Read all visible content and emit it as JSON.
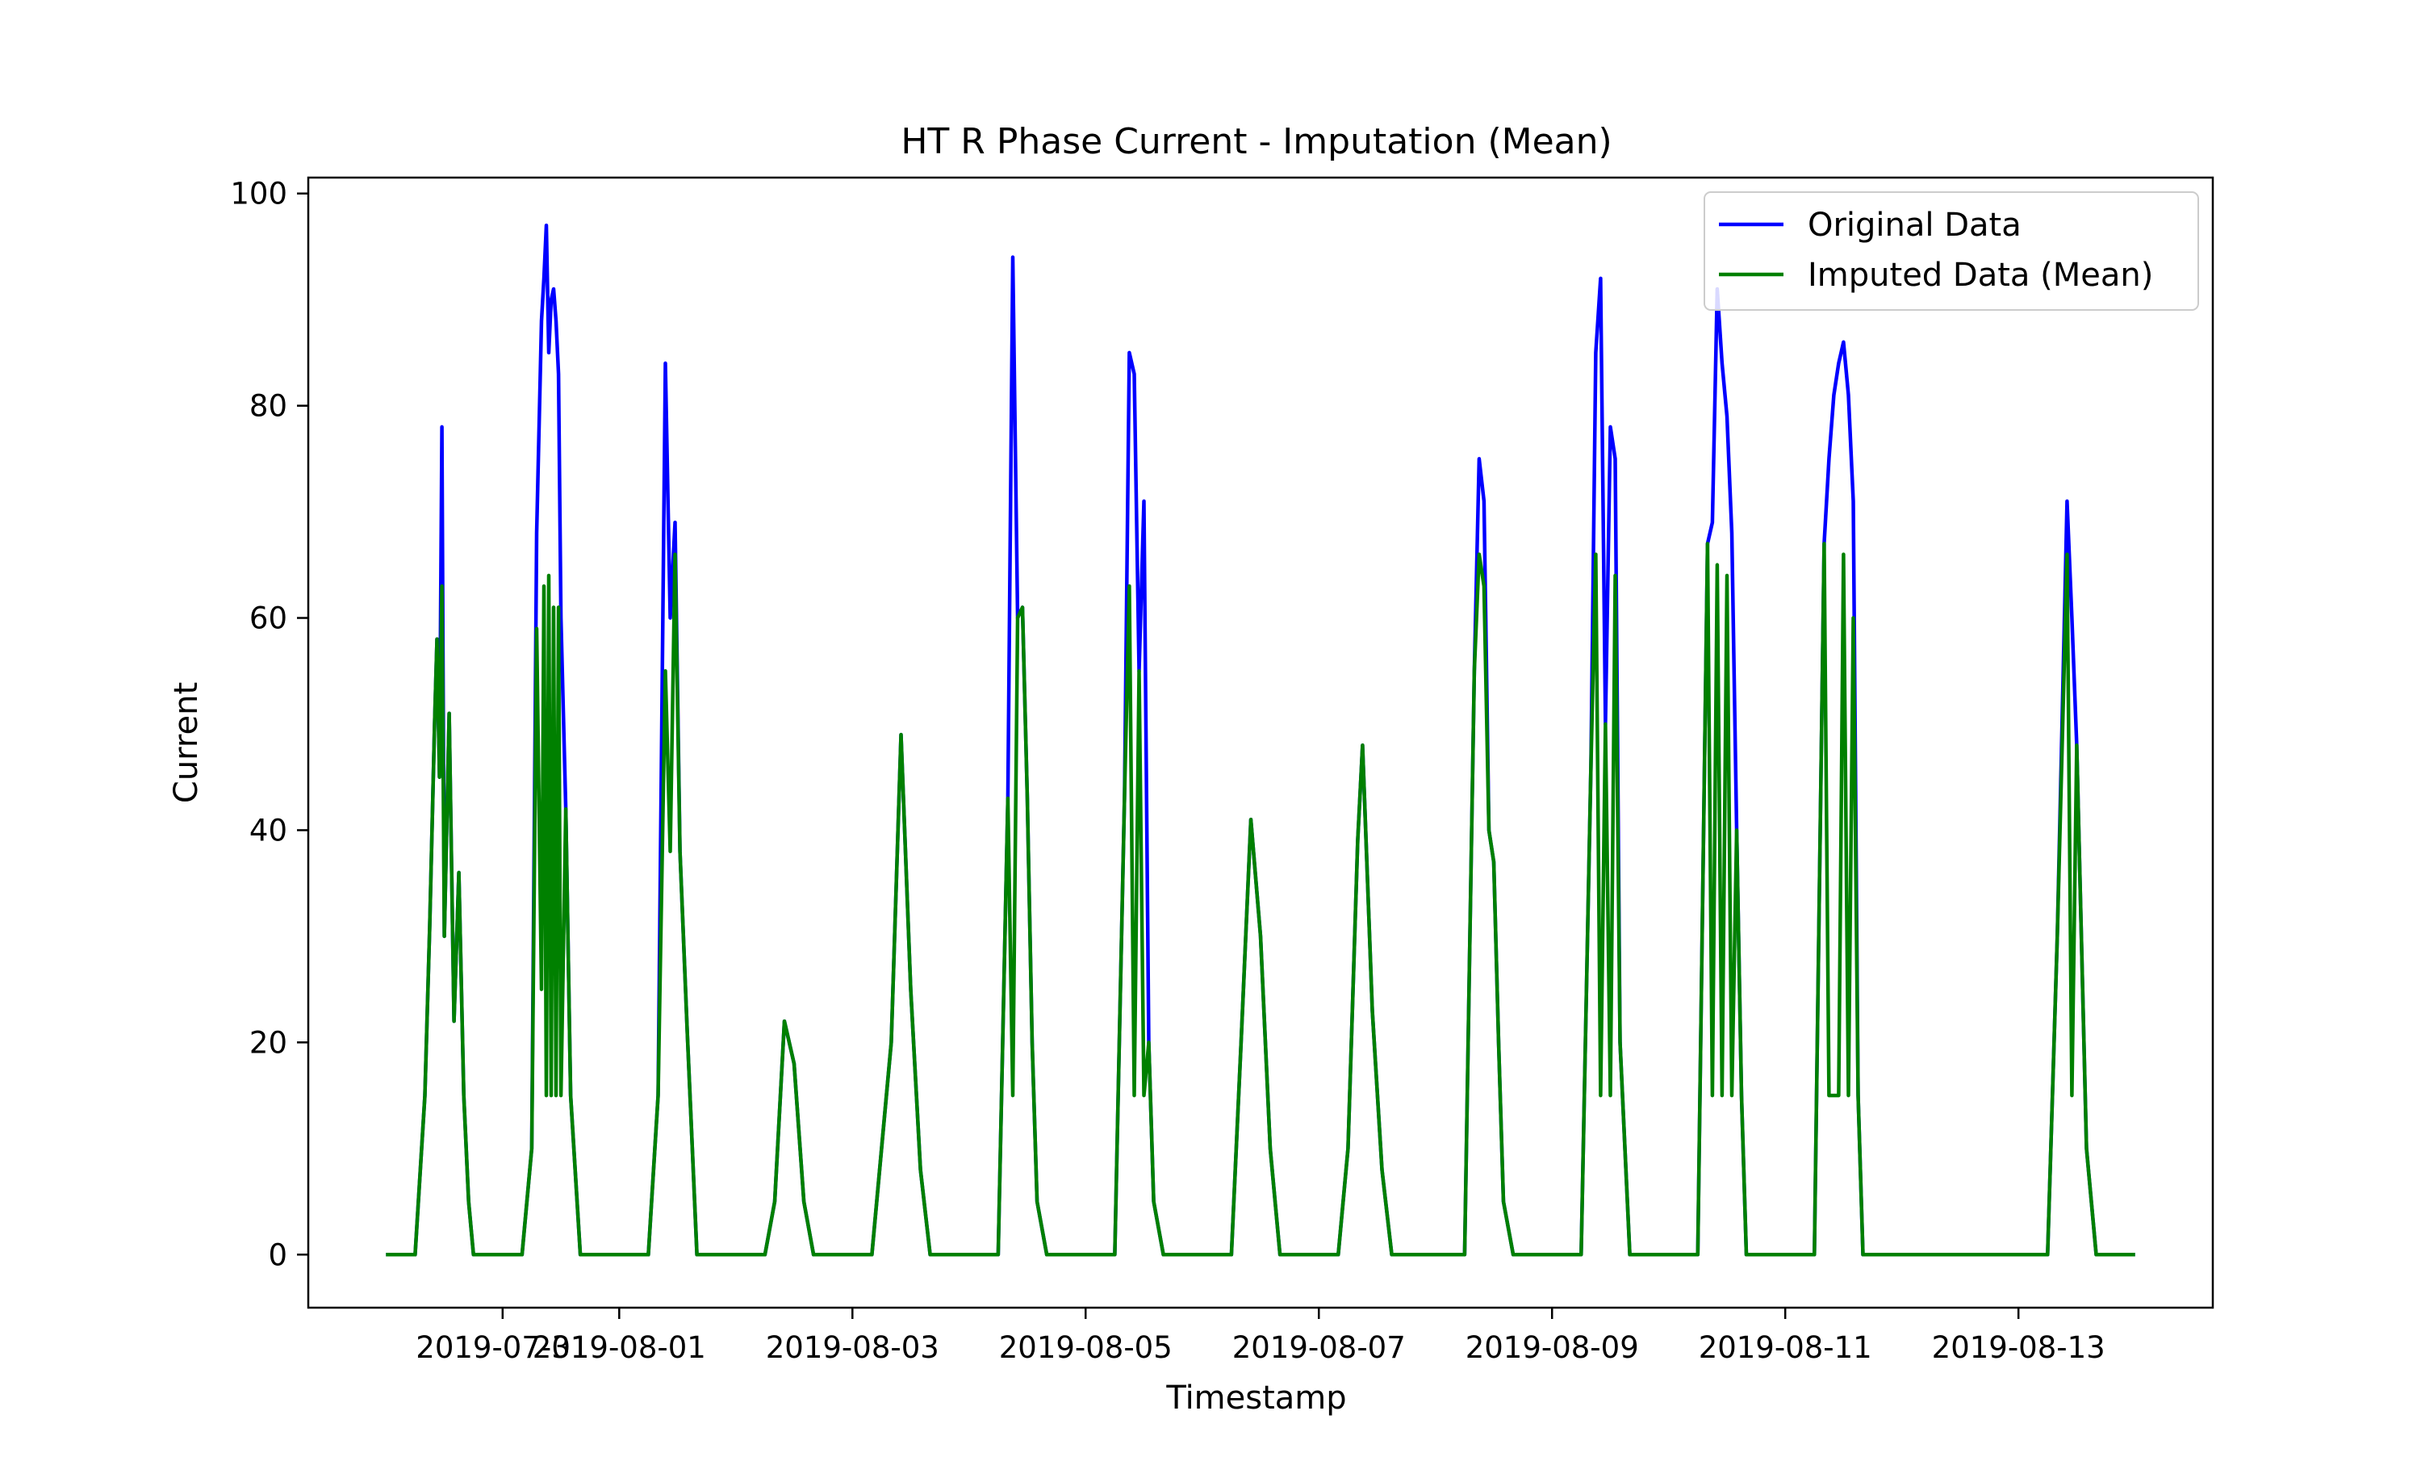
{
  "chart_data": {
    "type": "line",
    "title": "HT R Phase Current - Imputation (Mean)",
    "xlabel": "Timestamp",
    "ylabel": "Current",
    "grid": false,
    "legend_position": "top-right",
    "xlim": [
      "2019-07-29T08:00",
      "2019-08-14T16:00"
    ],
    "ylim": [
      -5,
      101.5
    ],
    "x_ticks": [
      "2019-07-31",
      "2019-08-01",
      "2019-08-03",
      "2019-08-05",
      "2019-08-07",
      "2019-08-09",
      "2019-08-11",
      "2019-08-13"
    ],
    "y_ticks": [
      0,
      20,
      40,
      60,
      80,
      100
    ],
    "series": [
      {
        "name": "Original Data",
        "color": "#0000ff",
        "points": [
          [
            "2019-07-30T00:00",
            0
          ],
          [
            "2019-07-30T06:00",
            0
          ],
          [
            "2019-07-30T08:00",
            15
          ],
          [
            "2019-07-30T09:00",
            31
          ],
          [
            "2019-07-30T10:00",
            50
          ],
          [
            "2019-07-30T10:30",
            58
          ],
          [
            "2019-07-30T11:00",
            45
          ],
          [
            "2019-07-30T11:30",
            78
          ],
          [
            "2019-07-30T12:00",
            30
          ],
          [
            "2019-07-30T13:00",
            51
          ],
          [
            "2019-07-30T14:00",
            22
          ],
          [
            "2019-07-30T15:00",
            36
          ],
          [
            "2019-07-30T16:00",
            15
          ],
          [
            "2019-07-30T17:00",
            5
          ],
          [
            "2019-07-30T18:00",
            0
          ],
          [
            "2019-07-31T04:00",
            0
          ],
          [
            "2019-07-31T06:00",
            10
          ],
          [
            "2019-07-31T07:00",
            68
          ],
          [
            "2019-07-31T08:00",
            88
          ],
          [
            "2019-07-31T08:30",
            92
          ],
          [
            "2019-07-31T09:00",
            97
          ],
          [
            "2019-07-31T09:30",
            85
          ],
          [
            "2019-07-31T10:00",
            90
          ],
          [
            "2019-07-31T10:30",
            91
          ],
          [
            "2019-07-31T11:00",
            88
          ],
          [
            "2019-07-31T11:30",
            83
          ],
          [
            "2019-07-31T12:00",
            60
          ],
          [
            "2019-07-31T13:00",
            42
          ],
          [
            "2019-07-31T14:00",
            15
          ],
          [
            "2019-07-31T16:00",
            0
          ],
          [
            "2019-08-01T06:00",
            0
          ],
          [
            "2019-08-01T08:00",
            15
          ],
          [
            "2019-08-01T09:30",
            84
          ],
          [
            "2019-08-01T10:30",
            60
          ],
          [
            "2019-08-01T11:30",
            69
          ],
          [
            "2019-08-01T12:30",
            38
          ],
          [
            "2019-08-01T14:00",
            21
          ],
          [
            "2019-08-01T16:00",
            0
          ],
          [
            "2019-08-02T06:00",
            0
          ],
          [
            "2019-08-02T08:00",
            5
          ],
          [
            "2019-08-02T10:00",
            22
          ],
          [
            "2019-08-02T12:00",
            18
          ],
          [
            "2019-08-02T14:00",
            5
          ],
          [
            "2019-08-02T16:00",
            0
          ],
          [
            "2019-08-03T04:00",
            0
          ],
          [
            "2019-08-03T06:00",
            10
          ],
          [
            "2019-08-03T08:00",
            20
          ],
          [
            "2019-08-03T10:00",
            49
          ],
          [
            "2019-08-03T12:00",
            25
          ],
          [
            "2019-08-03T14:00",
            8
          ],
          [
            "2019-08-03T16:00",
            0
          ],
          [
            "2019-08-04T06:00",
            0
          ],
          [
            "2019-08-04T08:00",
            43
          ],
          [
            "2019-08-04T09:00",
            94
          ],
          [
            "2019-08-04T10:00",
            60
          ],
          [
            "2019-08-04T11:00",
            61
          ],
          [
            "2019-08-04T12:00",
            43
          ],
          [
            "2019-08-04T13:00",
            20
          ],
          [
            "2019-08-04T14:00",
            5
          ],
          [
            "2019-08-04T16:00",
            0
          ],
          [
            "2019-08-05T06:00",
            0
          ],
          [
            "2019-08-05T08:00",
            43
          ],
          [
            "2019-08-05T09:00",
            85
          ],
          [
            "2019-08-05T10:00",
            83
          ],
          [
            "2019-08-05T11:00",
            55
          ],
          [
            "2019-08-05T12:00",
            71
          ],
          [
            "2019-08-05T13:00",
            20
          ],
          [
            "2019-08-05T14:00",
            5
          ],
          [
            "2019-08-05T16:00",
            0
          ],
          [
            "2019-08-06T06:00",
            0
          ],
          [
            "2019-08-06T08:00",
            20
          ],
          [
            "2019-08-06T10:00",
            41
          ],
          [
            "2019-08-06T12:00",
            30
          ],
          [
            "2019-08-06T14:00",
            10
          ],
          [
            "2019-08-06T16:00",
            0
          ],
          [
            "2019-08-07T04:00",
            0
          ],
          [
            "2019-08-07T06:00",
            10
          ],
          [
            "2019-08-07T08:00",
            39
          ],
          [
            "2019-08-07T09:00",
            48
          ],
          [
            "2019-08-07T11:00",
            23
          ],
          [
            "2019-08-07T13:00",
            8
          ],
          [
            "2019-08-07T15:00",
            0
          ],
          [
            "2019-08-08T06:00",
            0
          ],
          [
            "2019-08-08T08:00",
            55
          ],
          [
            "2019-08-08T09:00",
            75
          ],
          [
            "2019-08-08T10:00",
            71
          ],
          [
            "2019-08-08T11:00",
            40
          ],
          [
            "2019-08-08T12:00",
            37
          ],
          [
            "2019-08-08T13:00",
            20
          ],
          [
            "2019-08-08T14:00",
            5
          ],
          [
            "2019-08-08T16:00",
            0
          ],
          [
            "2019-08-09T06:00",
            0
          ],
          [
            "2019-08-09T08:00",
            46
          ],
          [
            "2019-08-09T09:00",
            85
          ],
          [
            "2019-08-09T10:00",
            92
          ],
          [
            "2019-08-09T11:00",
            50
          ],
          [
            "2019-08-09T12:00",
            78
          ],
          [
            "2019-08-09T13:00",
            75
          ],
          [
            "2019-08-09T14:00",
            20
          ],
          [
            "2019-08-09T16:00",
            0
          ],
          [
            "2019-08-10T06:00",
            0
          ],
          [
            "2019-08-10T08:00",
            67
          ],
          [
            "2019-08-10T09:00",
            69
          ],
          [
            "2019-08-10T10:00",
            91
          ],
          [
            "2019-08-10T11:00",
            84
          ],
          [
            "2019-08-10T12:00",
            79
          ],
          [
            "2019-08-10T13:00",
            68
          ],
          [
            "2019-08-10T14:00",
            40
          ],
          [
            "2019-08-10T15:00",
            15
          ],
          [
            "2019-08-10T16:00",
            0
          ],
          [
            "2019-08-11T06:00",
            0
          ],
          [
            "2019-08-11T08:00",
            67
          ],
          [
            "2019-08-11T09:00",
            75
          ],
          [
            "2019-08-11T10:00",
            81
          ],
          [
            "2019-08-11T11:00",
            84
          ],
          [
            "2019-08-11T12:00",
            86
          ],
          [
            "2019-08-11T13:00",
            81
          ],
          [
            "2019-08-11T14:00",
            71
          ],
          [
            "2019-08-11T15:00",
            15
          ],
          [
            "2019-08-11T16:00",
            0
          ],
          [
            "2019-08-13T06:00",
            0
          ],
          [
            "2019-08-13T08:00",
            30
          ],
          [
            "2019-08-13T10:00",
            71
          ],
          [
            "2019-08-13T11:00",
            60
          ],
          [
            "2019-08-13T12:00",
            48
          ],
          [
            "2019-08-13T14:00",
            10
          ],
          [
            "2019-08-13T16:00",
            0
          ],
          [
            "2019-08-14T00:00",
            0
          ]
        ]
      },
      {
        "name": "Imputed Data (Mean)",
        "color": "#008000",
        "points": [
          [
            "2019-07-30T00:00",
            0
          ],
          [
            "2019-07-30T06:00",
            0
          ],
          [
            "2019-07-30T08:00",
            15
          ],
          [
            "2019-07-30T09:00",
            31
          ],
          [
            "2019-07-30T10:00",
            50
          ],
          [
            "2019-07-30T10:30",
            58
          ],
          [
            "2019-07-30T11:00",
            45
          ],
          [
            "2019-07-30T11:30",
            63
          ],
          [
            "2019-07-30T12:00",
            30
          ],
          [
            "2019-07-30T13:00",
            51
          ],
          [
            "2019-07-30T14:00",
            22
          ],
          [
            "2019-07-30T15:00",
            36
          ],
          [
            "2019-07-30T16:00",
            15
          ],
          [
            "2019-07-30T17:00",
            5
          ],
          [
            "2019-07-30T18:00",
            0
          ],
          [
            "2019-07-31T04:00",
            0
          ],
          [
            "2019-07-31T06:00",
            10
          ],
          [
            "2019-07-31T07:00",
            59
          ],
          [
            "2019-07-31T08:00",
            25
          ],
          [
            "2019-07-31T08:30",
            63
          ],
          [
            "2019-07-31T09:00",
            15
          ],
          [
            "2019-07-31T09:30",
            64
          ],
          [
            "2019-07-31T10:00",
            15
          ],
          [
            "2019-07-31T10:30",
            61
          ],
          [
            "2019-07-31T11:00",
            15
          ],
          [
            "2019-07-31T11:30",
            61
          ],
          [
            "2019-07-31T12:00",
            15
          ],
          [
            "2019-07-31T13:00",
            42
          ],
          [
            "2019-07-31T14:00",
            15
          ],
          [
            "2019-07-31T16:00",
            0
          ],
          [
            "2019-08-01T06:00",
            0
          ],
          [
            "2019-08-01T08:00",
            15
          ],
          [
            "2019-08-01T09:30",
            55
          ],
          [
            "2019-08-01T10:30",
            38
          ],
          [
            "2019-08-01T11:30",
            66
          ],
          [
            "2019-08-01T12:30",
            38
          ],
          [
            "2019-08-01T14:00",
            21
          ],
          [
            "2019-08-01T16:00",
            0
          ],
          [
            "2019-08-02T06:00",
            0
          ],
          [
            "2019-08-02T08:00",
            5
          ],
          [
            "2019-08-02T10:00",
            22
          ],
          [
            "2019-08-02T12:00",
            18
          ],
          [
            "2019-08-02T14:00",
            5
          ],
          [
            "2019-08-02T16:00",
            0
          ],
          [
            "2019-08-03T04:00",
            0
          ],
          [
            "2019-08-03T06:00",
            10
          ],
          [
            "2019-08-03T08:00",
            20
          ],
          [
            "2019-08-03T10:00",
            49
          ],
          [
            "2019-08-03T12:00",
            25
          ],
          [
            "2019-08-03T14:00",
            8
          ],
          [
            "2019-08-03T16:00",
            0
          ],
          [
            "2019-08-04T06:00",
            0
          ],
          [
            "2019-08-04T08:00",
            43
          ],
          [
            "2019-08-04T09:00",
            15
          ],
          [
            "2019-08-04T10:00",
            60
          ],
          [
            "2019-08-04T11:00",
            61
          ],
          [
            "2019-08-04T12:00",
            43
          ],
          [
            "2019-08-04T13:00",
            20
          ],
          [
            "2019-08-04T14:00",
            5
          ],
          [
            "2019-08-04T16:00",
            0
          ],
          [
            "2019-08-05T06:00",
            0
          ],
          [
            "2019-08-05T08:00",
            43
          ],
          [
            "2019-08-05T09:00",
            63
          ],
          [
            "2019-08-05T10:00",
            15
          ],
          [
            "2019-08-05T11:00",
            55
          ],
          [
            "2019-08-05T12:00",
            15
          ],
          [
            "2019-08-05T13:00",
            20
          ],
          [
            "2019-08-05T14:00",
            5
          ],
          [
            "2019-08-05T16:00",
            0
          ],
          [
            "2019-08-06T06:00",
            0
          ],
          [
            "2019-08-06T08:00",
            20
          ],
          [
            "2019-08-06T10:00",
            41
          ],
          [
            "2019-08-06T12:00",
            30
          ],
          [
            "2019-08-06T14:00",
            10
          ],
          [
            "2019-08-06T16:00",
            0
          ],
          [
            "2019-08-07T04:00",
            0
          ],
          [
            "2019-08-07T06:00",
            10
          ],
          [
            "2019-08-07T08:00",
            39
          ],
          [
            "2019-08-07T09:00",
            48
          ],
          [
            "2019-08-07T11:00",
            23
          ],
          [
            "2019-08-07T13:00",
            8
          ],
          [
            "2019-08-07T15:00",
            0
          ],
          [
            "2019-08-08T06:00",
            0
          ],
          [
            "2019-08-08T08:00",
            55
          ],
          [
            "2019-08-08T09:00",
            66
          ],
          [
            "2019-08-08T10:00",
            63
          ],
          [
            "2019-08-08T11:00",
            40
          ],
          [
            "2019-08-08T12:00",
            37
          ],
          [
            "2019-08-08T13:00",
            20
          ],
          [
            "2019-08-08T14:00",
            5
          ],
          [
            "2019-08-08T16:00",
            0
          ],
          [
            "2019-08-09T06:00",
            0
          ],
          [
            "2019-08-09T08:00",
            46
          ],
          [
            "2019-08-09T09:00",
            66
          ],
          [
            "2019-08-09T10:00",
            15
          ],
          [
            "2019-08-09T11:00",
            50
          ],
          [
            "2019-08-09T12:00",
            15
          ],
          [
            "2019-08-09T13:00",
            64
          ],
          [
            "2019-08-09T14:00",
            20
          ],
          [
            "2019-08-09T16:00",
            0
          ],
          [
            "2019-08-10T06:00",
            0
          ],
          [
            "2019-08-10T08:00",
            67
          ],
          [
            "2019-08-10T09:00",
            15
          ],
          [
            "2019-08-10T10:00",
            65
          ],
          [
            "2019-08-10T11:00",
            15
          ],
          [
            "2019-08-10T12:00",
            64
          ],
          [
            "2019-08-10T13:00",
            15
          ],
          [
            "2019-08-10T14:00",
            40
          ],
          [
            "2019-08-10T15:00",
            15
          ],
          [
            "2019-08-10T16:00",
            0
          ],
          [
            "2019-08-11T06:00",
            0
          ],
          [
            "2019-08-11T08:00",
            67
          ],
          [
            "2019-08-11T09:00",
            15
          ],
          [
            "2019-08-11T10:00",
            15
          ],
          [
            "2019-08-11T11:00",
            15
          ],
          [
            "2019-08-11T12:00",
            66
          ],
          [
            "2019-08-11T13:00",
            15
          ],
          [
            "2019-08-11T14:00",
            60
          ],
          [
            "2019-08-11T15:00",
            15
          ],
          [
            "2019-08-11T16:00",
            0
          ],
          [
            "2019-08-13T06:00",
            0
          ],
          [
            "2019-08-13T08:00",
            30
          ],
          [
            "2019-08-13T10:00",
            66
          ],
          [
            "2019-08-13T11:00",
            15
          ],
          [
            "2019-08-13T12:00",
            48
          ],
          [
            "2019-08-13T14:00",
            10
          ],
          [
            "2019-08-13T16:00",
            0
          ],
          [
            "2019-08-14T00:00",
            0
          ]
        ]
      }
    ]
  }
}
